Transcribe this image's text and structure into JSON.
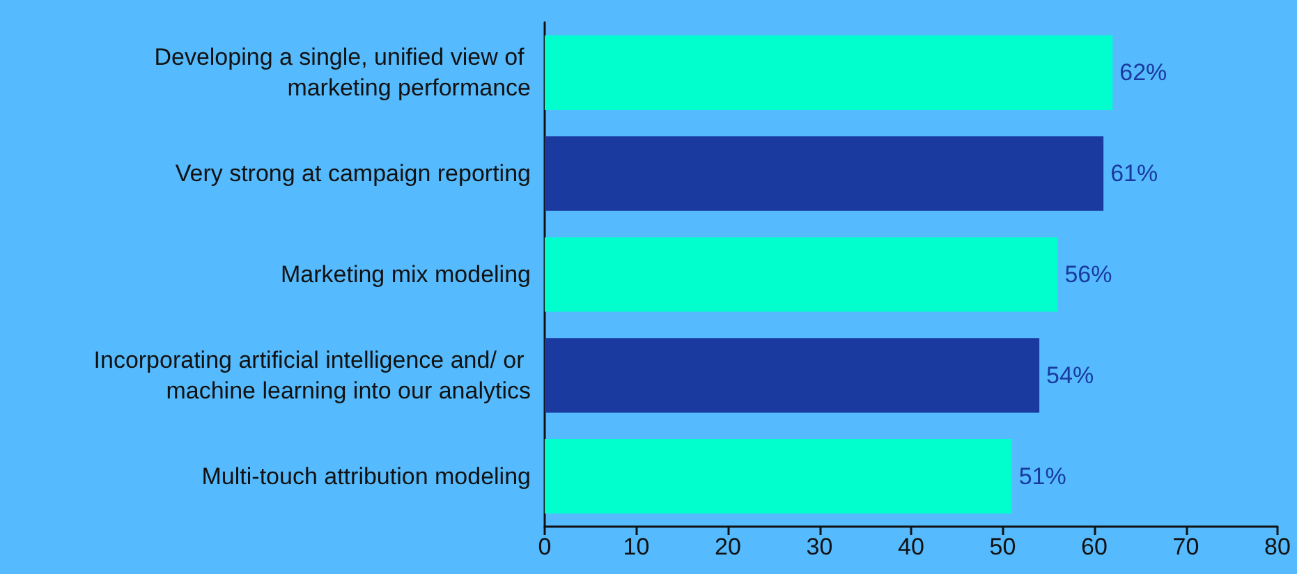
{
  "chart_data": {
    "type": "bar",
    "orientation": "horizontal",
    "categories": [
      "Developing a single, unified view of marketing performance",
      "Very strong at campaign reporting",
      "Marketing mix modeling",
      "Incorporating artificial intelligence and/ or machine learning into our analytics",
      "Multi-touch attribution modeling"
    ],
    "values": [
      62,
      61,
      56,
      54,
      51
    ],
    "colors": [
      "#00ffcc",
      "#1a3a9f",
      "#00ffcc",
      "#1a3a9f",
      "#00ffcc"
    ],
    "value_labels": [
      "62%",
      "61%",
      "56%",
      "54%",
      "51%"
    ],
    "xlim": [
      0,
      80
    ],
    "xticks": [
      0,
      10,
      20,
      30,
      40,
      50,
      60,
      70,
      80
    ],
    "grid": false
  }
}
